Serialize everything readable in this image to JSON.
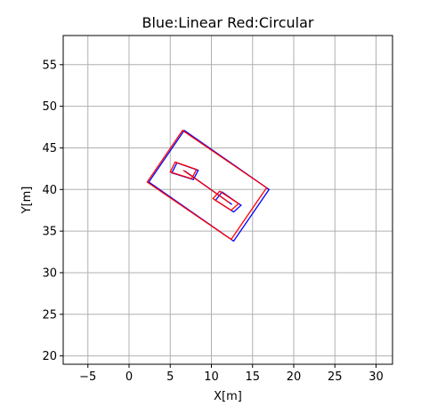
{
  "chart_data": {
    "type": "line",
    "title": "Blue:Linear Red:Circular",
    "xlabel": "X[m]",
    "ylabel": "Y[m]",
    "xlim": [
      -8,
      32
    ],
    "ylim": [
      19,
      58.5
    ],
    "xticks": [
      -5,
      0,
      5,
      10,
      15,
      20,
      25,
      30
    ],
    "yticks": [
      20,
      25,
      30,
      35,
      40,
      45,
      50,
      55
    ],
    "grid": true,
    "colors": {
      "blue": "#0000ff",
      "red": "#ff0000",
      "grid": "#b0b0b0"
    },
    "series": [
      {
        "color": "blue",
        "shapes": [
          {
            "kind": "polygon",
            "points": [
              [
                6.7,
                47.1
              ],
              [
                17.0,
                40.0
              ],
              [
                12.7,
                33.8
              ],
              [
                2.4,
                40.9
              ]
            ]
          },
          {
            "kind": "polygon",
            "points": [
              [
                5.8,
                43.2
              ],
              [
                8.4,
                42.3
              ],
              [
                7.8,
                41.2
              ],
              [
                5.2,
                42.0
              ]
            ]
          },
          {
            "kind": "polygon",
            "points": [
              [
                11.3,
                39.7
              ],
              [
                13.6,
                38.1
              ],
              [
                12.7,
                37.3
              ],
              [
                10.5,
                38.7
              ]
            ]
          },
          {
            "kind": "line",
            "points": [
              [
                6.8,
                42.2
              ],
              [
                12.5,
                38.2
              ]
            ]
          }
        ]
      },
      {
        "color": "red",
        "shapes": [
          {
            "kind": "polygon",
            "points": [
              [
                6.5,
                47.1
              ],
              [
                16.7,
                40.2
              ],
              [
                12.4,
                34.0
              ],
              [
                2.2,
                40.9
              ]
            ]
          },
          {
            "kind": "polygon",
            "points": [
              [
                5.6,
                43.3
              ],
              [
                8.2,
                42.4
              ],
              [
                7.6,
                41.3
              ],
              [
                5.0,
                42.1
              ]
            ]
          },
          {
            "kind": "polygon",
            "points": [
              [
                11.0,
                39.8
              ],
              [
                13.3,
                38.3
              ],
              [
                12.4,
                37.5
              ],
              [
                10.2,
                38.9
              ]
            ]
          },
          {
            "kind": "line",
            "points": [
              [
                6.6,
                42.3
              ],
              [
                12.2,
                38.4
              ]
            ]
          }
        ]
      }
    ]
  }
}
